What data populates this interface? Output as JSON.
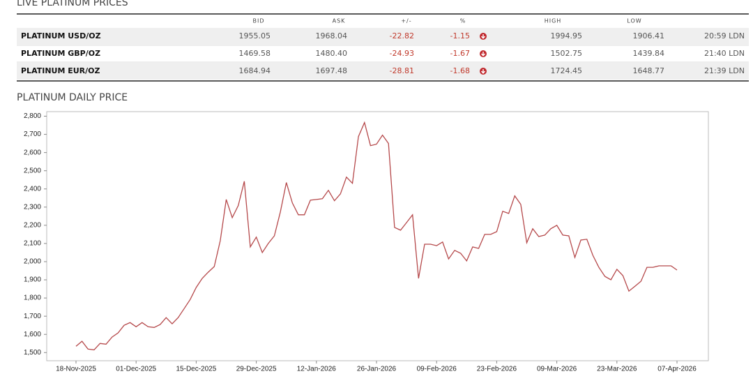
{
  "table": {
    "title": "LIVE PLATINUM PRICES",
    "headers": [
      "BID",
      "ASK",
      "+/-",
      "%",
      "HIGH",
      "LOW"
    ],
    "rows": [
      [
        "PLATINUM USD/OZ",
        "1955.05",
        "1968.04",
        "-22.82",
        "-1.15",
        "1994.95",
        "1906.41",
        "20:59 LDN"
      ],
      [
        "PLATINUM GBP/OZ",
        "1469.58",
        "1480.40",
        "-24.93",
        "-1.67",
        "1502.75",
        "1439.84",
        "21:40 LDN"
      ],
      [
        "PLATINUM EUR/OZ",
        "1684.94",
        "1697.48",
        "-28.81",
        "-1.68",
        "1724.45",
        "1648.77",
        "21:39 LDN"
      ]
    ]
  },
  "chart_data": {
    "type": "line",
    "title": "PLATINUM DAILY PRICE",
    "color": "#b5484a",
    "categories": [
      "18-Nov-2025",
      null,
      null,
      null,
      null,
      null,
      null,
      null,
      null,
      null,
      "01-Dec-2025",
      null,
      null,
      null,
      null,
      null,
      null,
      null,
      null,
      null,
      "15-Dec-2025",
      null,
      null,
      null,
      null,
      null,
      null,
      null,
      null,
      null,
      "29-Dec-2025",
      null,
      null,
      null,
      null,
      null,
      null,
      null,
      null,
      null,
      "12-Jan-2026",
      null,
      null,
      null,
      null,
      null,
      null,
      null,
      null,
      null,
      "26-Jan-2026",
      null,
      null,
      null,
      null,
      null,
      null,
      null,
      null,
      null,
      "09-Feb-2026",
      null,
      null,
      null,
      null,
      null,
      null,
      null,
      null,
      null,
      "23-Feb-2026",
      null,
      null,
      null,
      null,
      null,
      null,
      null,
      null,
      null,
      "09-Mar-2026",
      null,
      null,
      null,
      null,
      null,
      null,
      null,
      null,
      null,
      "23-Mar-2026",
      null,
      null,
      null,
      null,
      null,
      null,
      null,
      null,
      null,
      "07-Apr-2026"
    ],
    "values": [
      1535,
      1562,
      1519,
      1515,
      1550,
      1546,
      1585,
      1608,
      1650,
      1665,
      1642,
      1665,
      1642,
      1638,
      1654,
      1692,
      1658,
      1692,
      1742,
      1792,
      1858,
      1908,
      1942,
      1973,
      2115,
      2342,
      2242,
      2308,
      2442,
      2081,
      2135,
      2050,
      2100,
      2142,
      2273,
      2435,
      2323,
      2258,
      2258,
      2338,
      2342,
      2346,
      2392,
      2335,
      2373,
      2465,
      2431,
      2688,
      2765,
      2638,
      2646,
      2696,
      2650,
      2188,
      2173,
      2215,
      2258,
      1908,
      2096,
      2096,
      2088,
      2108,
      2015,
      2062,
      2046,
      2004,
      2081,
      2073,
      2150,
      2150,
      2165,
      2277,
      2265,
      2362,
      2315,
      2104,
      2181,
      2138,
      2146,
      2181,
      2200,
      2146,
      2142,
      2023,
      2119,
      2123,
      2035,
      1969,
      1919,
      1900,
      1958,
      1923,
      1838,
      1865,
      1892,
      1969,
      1969,
      1977,
      1977,
      1977,
      1954
    ],
    "ylim": [
      1455,
      2825
    ],
    "yticks": [
      {
        "value": 1500,
        "label": "1,500"
      },
      {
        "value": 1600,
        "label": "1,600"
      },
      {
        "value": 1700,
        "label": "1,700"
      },
      {
        "value": 1800,
        "label": "1,800"
      },
      {
        "value": 1900,
        "label": "1,900"
      },
      {
        "value": 2000,
        "label": "2,000"
      },
      {
        "value": 2100,
        "label": "2,100"
      },
      {
        "value": 2200,
        "label": "2,200"
      },
      {
        "value": 2300,
        "label": "2,300"
      },
      {
        "value": 2400,
        "label": "2,400"
      },
      {
        "value": 2500,
        "label": "2,500"
      },
      {
        "value": 2600,
        "label": "2,600"
      },
      {
        "value": 2700,
        "label": "2,700"
      },
      {
        "value": 2800,
        "label": "2,800"
      }
    ],
    "grid": false
  }
}
